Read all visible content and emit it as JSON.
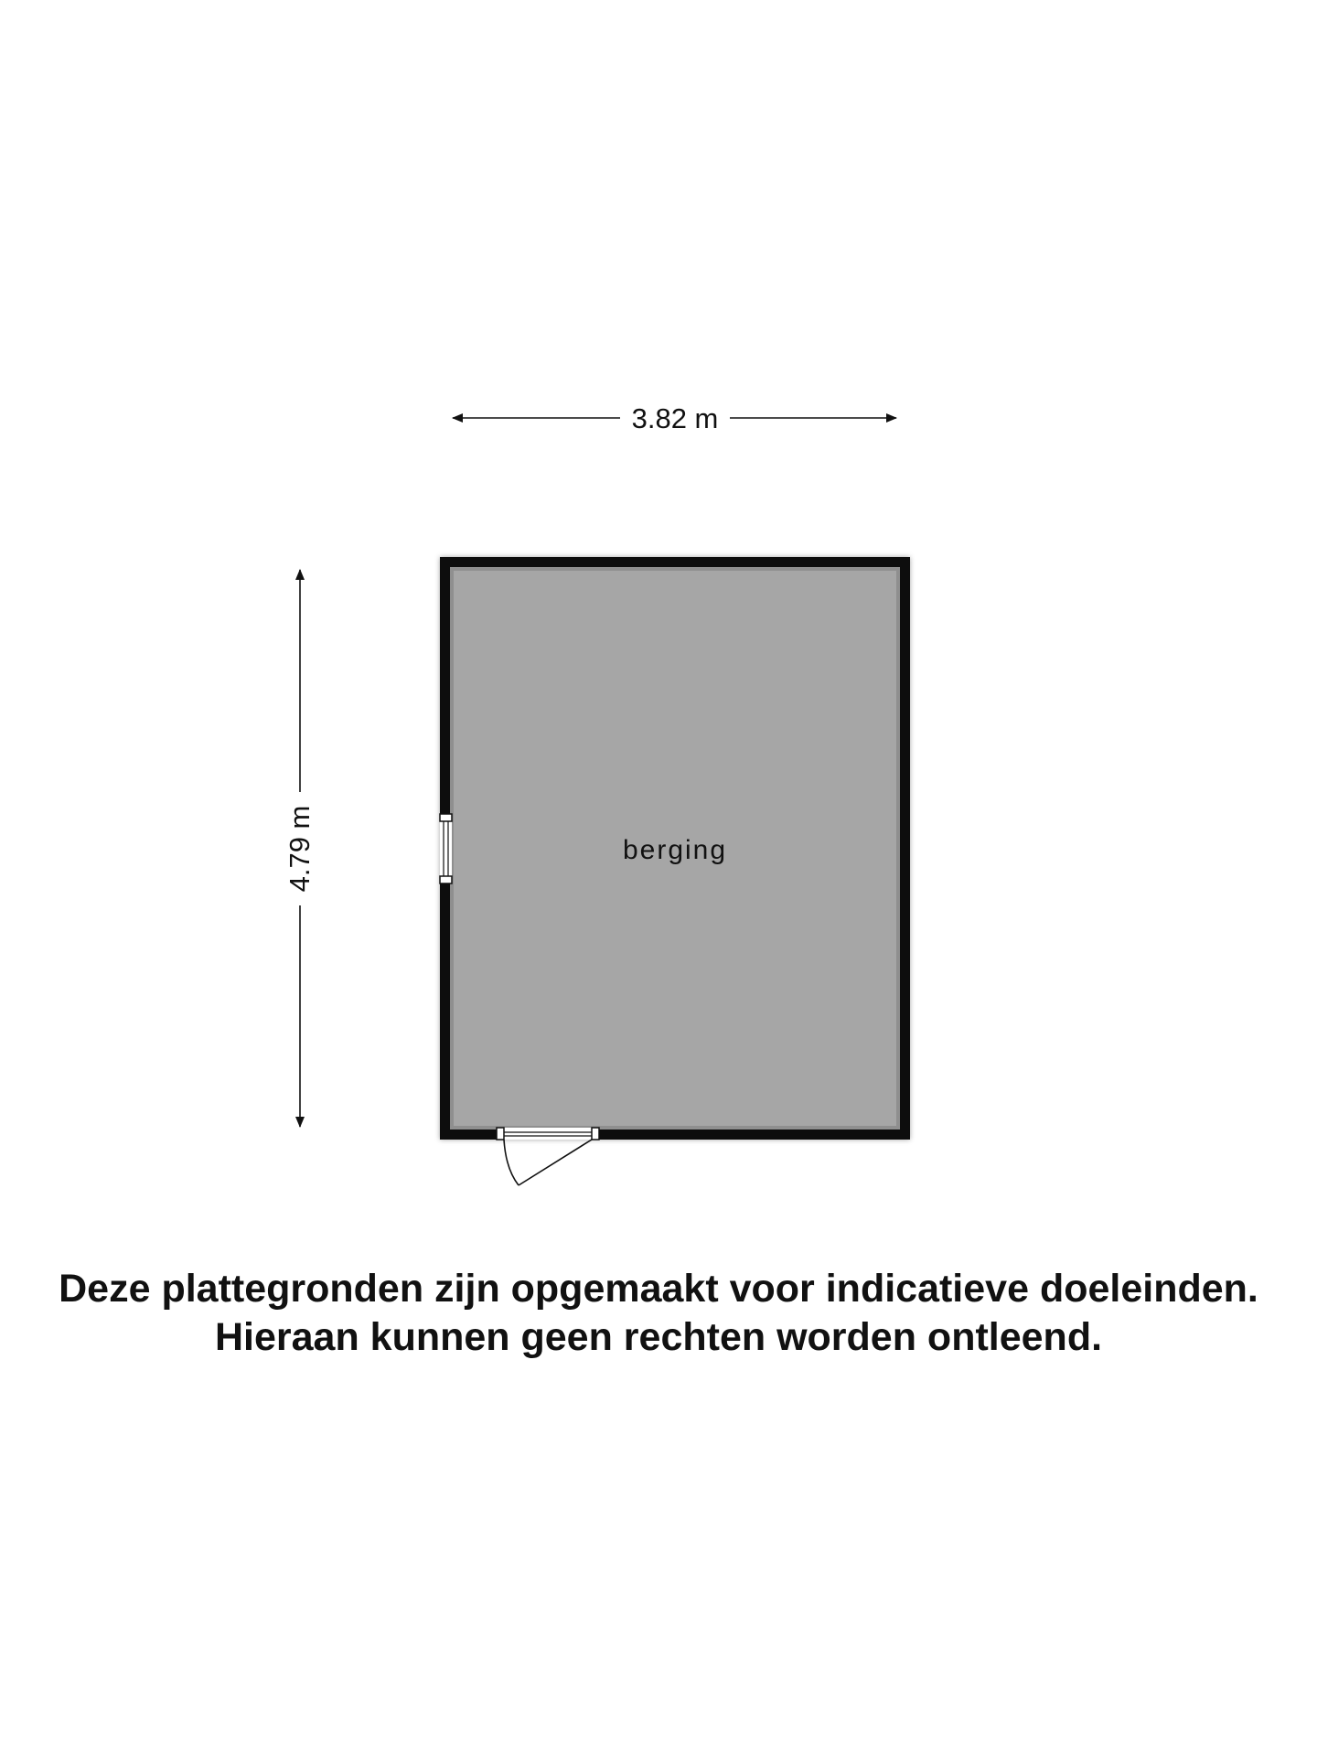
{
  "floorplan": {
    "width_dimension": "3.82 m",
    "height_dimension": "4.79 m",
    "room_label": "berging"
  },
  "disclaimer": {
    "line1": "Deze plattegronden zijn opgemaakt voor indicatieve doeleinden.",
    "line2": "Hieraan kunnen geen rechten worden ontleend."
  },
  "colors": {
    "floor": "#a6a6a6",
    "wall": "#111111",
    "background": "#ffffff"
  }
}
